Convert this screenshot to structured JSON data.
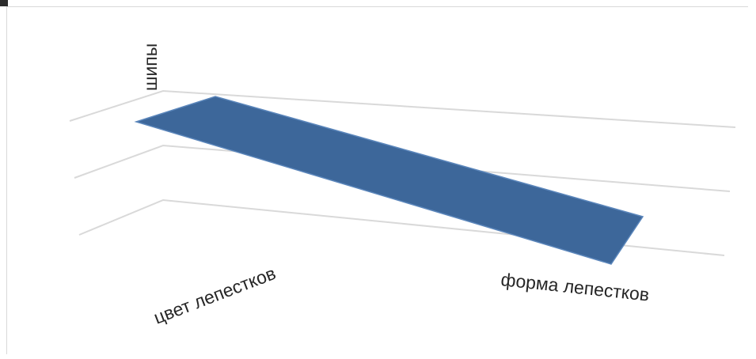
{
  "chart_data": {
    "type": "area",
    "title": "",
    "categories": [
      "цвет лепестков",
      "форма лепестков"
    ],
    "series": [
      {
        "values": [
          3,
          1
        ]
      }
    ],
    "depth_labels": [
      "шипы"
    ],
    "ylim": [
      0,
      3
    ],
    "grid": true,
    "legend": "none",
    "colors": {
      "series": "#3d679a",
      "series_edge": "#5b86bb",
      "grid": "#d9d9d9"
    }
  }
}
